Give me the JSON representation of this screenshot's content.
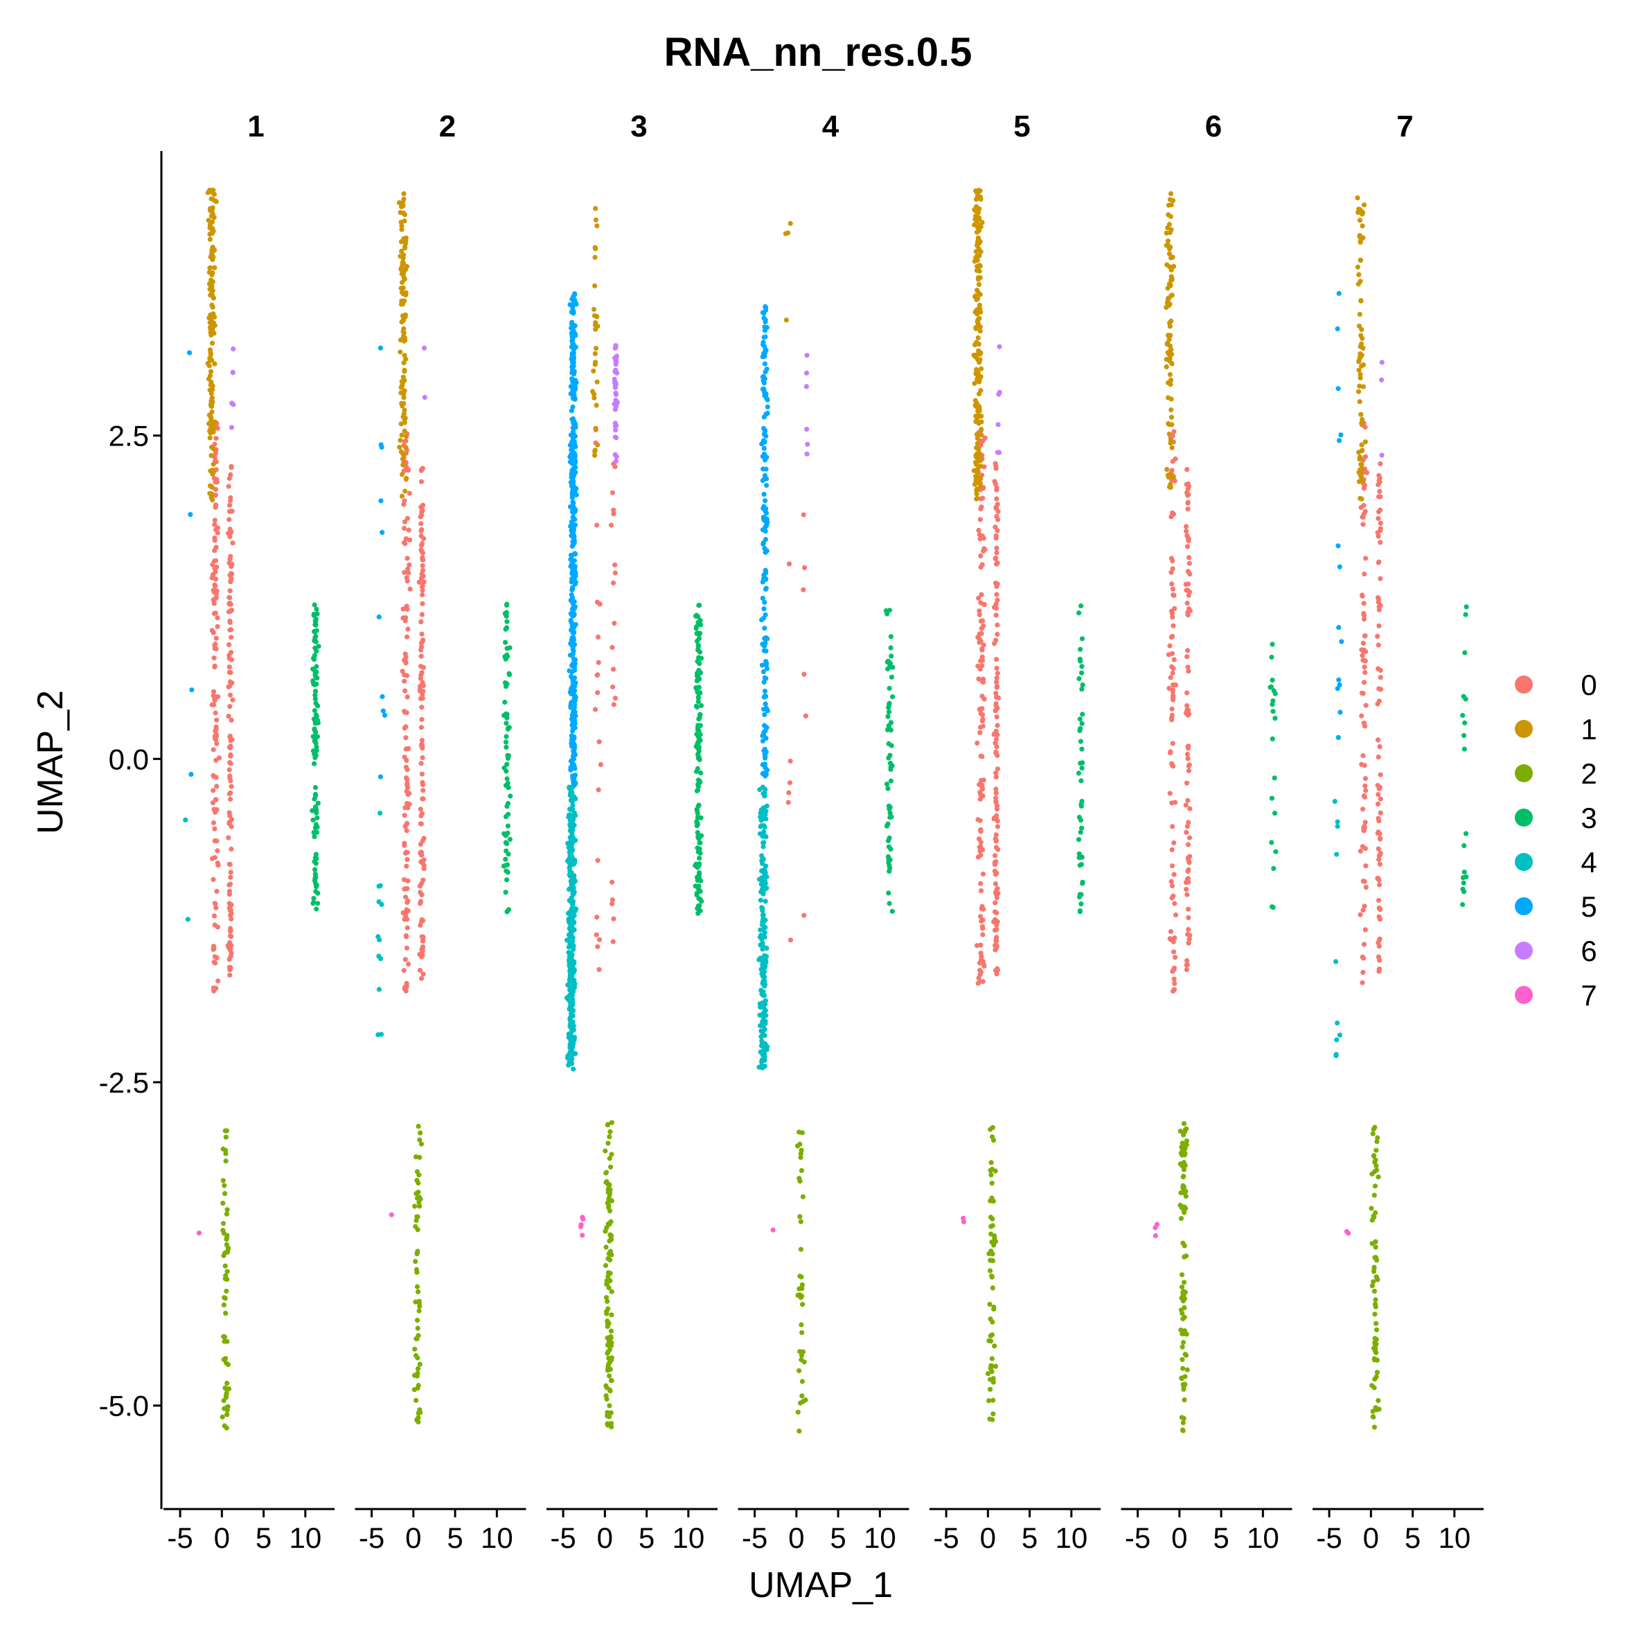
{
  "chart_data": {
    "type": "scatter",
    "title": "RNA_nn_res.0.5",
    "xlabel": "UMAP_1",
    "ylabel": "UMAP_2",
    "facets": [
      "1",
      "2",
      "3",
      "4",
      "5",
      "6",
      "7"
    ],
    "xlim": [
      -7,
      13.5
    ],
    "ylim": [
      -5.8,
      4.7
    ],
    "x_ticks": [
      -5,
      0,
      5,
      10
    ],
    "x_tick_labels": [
      "-5",
      "0",
      "5",
      "10"
    ],
    "y_ticks": [
      2.5,
      0.0,
      -2.5,
      -5.0
    ],
    "y_tick_labels": [
      "2.5",
      "0.0",
      "-2.5",
      "-5.0"
    ],
    "grid": false,
    "legend_position": "right",
    "legend": {
      "labels": [
        "0",
        "1",
        "2",
        "3",
        "4",
        "5",
        "6",
        "7"
      ],
      "colors": [
        "#F8766D",
        "#CD9600",
        "#7CAE00",
        "#00BE67",
        "#00BFC4",
        "#00A9FF",
        "#C77CFF",
        "#FF61CC"
      ]
    },
    "series": [
      {
        "name": "0",
        "color": "#F8766D",
        "facet_counts": [
          260,
          240,
          40,
          12,
          260,
          170,
          160
        ]
      },
      {
        "name": "1",
        "color": "#CD9600",
        "facet_counts": [
          150,
          110,
          30,
          4,
          180,
          90,
          70
        ]
      },
      {
        "name": "2",
        "color": "#7CAE00",
        "facet_counts": [
          60,
          60,
          110,
          40,
          60,
          90,
          70
        ]
      },
      {
        "name": "3",
        "color": "#00BE67",
        "facet_counts": [
          110,
          70,
          150,
          60,
          45,
          20,
          18
        ]
      },
      {
        "name": "4",
        "color": "#00BFC4",
        "facet_counts": [
          2,
          12,
          320,
          190,
          0,
          0,
          10
        ]
      },
      {
        "name": "5",
        "color": "#00A9FF",
        "facet_counts": [
          4,
          10,
          420,
          160,
          0,
          0,
          14
        ]
      },
      {
        "name": "6",
        "color": "#C77CFF",
        "facet_counts": [
          6,
          2,
          40,
          6,
          6,
          0,
          3
        ]
      },
      {
        "name": "7",
        "color": "#FF61CC",
        "facet_counts": [
          1,
          1,
          6,
          1,
          2,
          3,
          2
        ]
      }
    ]
  }
}
